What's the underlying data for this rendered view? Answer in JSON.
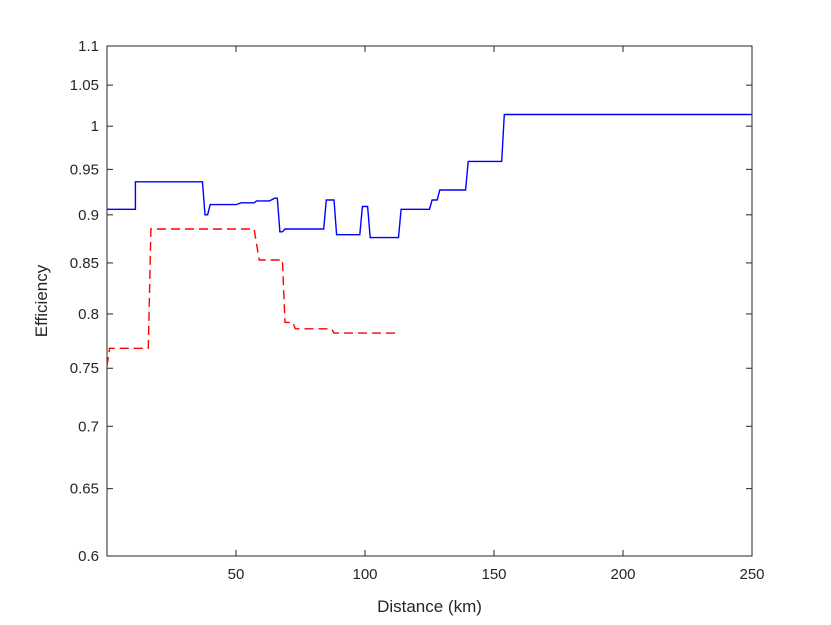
{
  "chart_data": {
    "type": "line",
    "title": "",
    "xlabel": "Distance (km)",
    "ylabel": "Efficiency",
    "xlim": [
      0,
      250
    ],
    "ylim": [
      0.6,
      1.1
    ],
    "yscale": "log",
    "xticks": [
      50,
      100,
      150,
      200,
      250
    ],
    "xtick_labels": [
      "50",
      "100",
      "150",
      "200",
      "250"
    ],
    "yticks": [
      0.6,
      0.65,
      0.7,
      0.75,
      0.8,
      0.85,
      0.9,
      0.95,
      1,
      1.05,
      1.1
    ],
    "ytick_labels": [
      "0.6",
      "0.65",
      "0.7",
      "0.75",
      "0.8",
      "0.85",
      "0.9",
      "0.95",
      "1",
      "1.05",
      "1.1"
    ],
    "grid": false,
    "legend": "none",
    "series": [
      {
        "color": "#0000ff",
        "style": "solid",
        "points": [
          [
            0,
            0.906
          ],
          [
            11,
            0.906
          ],
          [
            11,
            0.936
          ],
          [
            37,
            0.936
          ],
          [
            38,
            0.9
          ],
          [
            39,
            0.9
          ],
          [
            40,
            0.911
          ],
          [
            50,
            0.911
          ],
          [
            52,
            0.913
          ],
          [
            57,
            0.913
          ],
          [
            58,
            0.915
          ],
          [
            63,
            0.915
          ],
          [
            65,
            0.918
          ],
          [
            66,
            0.918
          ],
          [
            67,
            0.882
          ],
          [
            68,
            0.882
          ],
          [
            69,
            0.885
          ],
          [
            84,
            0.885
          ],
          [
            85,
            0.916
          ],
          [
            88,
            0.916
          ],
          [
            89,
            0.879
          ],
          [
            98,
            0.879
          ],
          [
            99,
            0.909
          ],
          [
            101,
            0.909
          ],
          [
            102,
            0.876
          ],
          [
            113,
            0.876
          ],
          [
            114,
            0.906
          ],
          [
            125,
            0.906
          ],
          [
            126,
            0.916
          ],
          [
            128,
            0.916
          ],
          [
            129,
            0.927
          ],
          [
            139,
            0.927
          ],
          [
            140,
            0.959
          ],
          [
            153,
            0.959
          ],
          [
            154,
            1.014
          ],
          [
            250,
            1.014
          ]
        ]
      },
      {
        "color": "#ff0000",
        "style": "dashed",
        "points": [
          [
            0,
            0.752
          ],
          [
            1,
            0.768
          ],
          [
            16,
            0.768
          ],
          [
            17,
            0.885
          ],
          [
            57,
            0.885
          ],
          [
            59,
            0.853
          ],
          [
            68,
            0.853
          ],
          [
            69,
            0.792
          ],
          [
            72,
            0.792
          ],
          [
            73,
            0.786
          ],
          [
            87,
            0.786
          ],
          [
            88,
            0.782
          ],
          [
            113,
            0.782
          ]
        ]
      }
    ]
  }
}
